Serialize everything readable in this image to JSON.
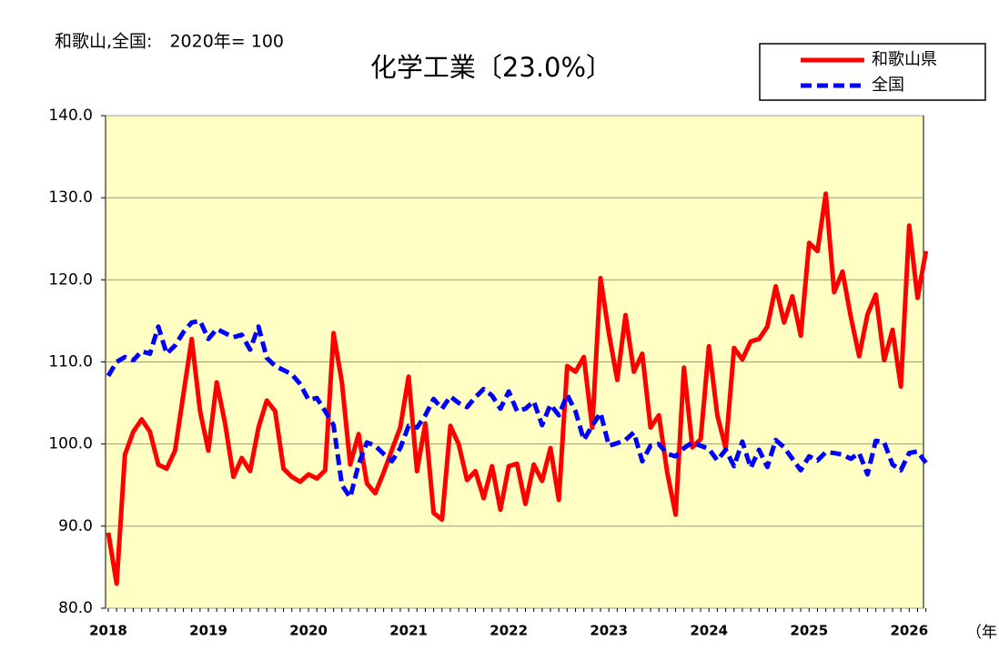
{
  "chart_data": {
    "type": "line",
    "title": "化学工業〔23.0%〕",
    "subtitle": "和歌山,全国:　2020年= 100",
    "xlabel": "（年",
    "categories": [
      "2018",
      null,
      null,
      null,
      null,
      null,
      null,
      null,
      null,
      null,
      null,
      null,
      "2019",
      null,
      null,
      null,
      null,
      null,
      null,
      null,
      null,
      null,
      null,
      null,
      "2020",
      null,
      null,
      null,
      null,
      null,
      null,
      null,
      null,
      null,
      null,
      null,
      "2021",
      null,
      null,
      null,
      null,
      null,
      null,
      null,
      null,
      null,
      null,
      null,
      "2022",
      null,
      null,
      null,
      null,
      null,
      null,
      null,
      null,
      null,
      null,
      null,
      "2023",
      null,
      null,
      null,
      null,
      null,
      null,
      null,
      null,
      null,
      null,
      null,
      "2024",
      null,
      null,
      null,
      null,
      null,
      null,
      null,
      null,
      null,
      null,
      null,
      "2025",
      null,
      null,
      null,
      null,
      null,
      null,
      null,
      null,
      null,
      null,
      null,
      "2026",
      null,
      null
    ],
    "series": [
      {
        "name": "和歌山県",
        "color": "#ff0000",
        "style": "solid",
        "values": [
          89.2,
          83.0,
          98.7,
          101.5,
          103.0,
          101.5,
          97.5,
          97.0,
          99.2,
          106.0,
          112.8,
          104.0,
          99.2,
          107.5,
          102.5,
          96.0,
          98.3,
          96.7,
          102.0,
          105.3,
          104.0,
          97.0,
          96.0,
          95.4,
          96.3,
          95.8,
          96.8,
          113.5,
          107.5,
          97.5,
          101.2,
          95.2,
          94.0,
          96.5,
          99.3,
          102.0,
          108.2,
          96.7,
          102.5,
          91.6,
          90.8,
          102.2,
          100.0,
          95.6,
          96.7,
          93.4,
          97.3,
          92.0,
          97.3,
          97.6,
          92.7,
          97.5,
          95.5,
          99.5,
          93.2,
          109.5,
          108.8,
          110.6,
          102.0,
          120.2,
          113.5,
          107.8,
          115.7,
          108.8,
          111.0,
          102.0,
          103.5,
          96.5,
          91.4,
          109.3,
          99.6,
          100.6,
          111.9,
          103.5,
          99.5,
          111.7,
          110.3,
          112.5,
          112.8,
          114.3,
          119.2,
          114.8,
          118.0,
          113.2,
          124.5,
          123.5,
          130.5,
          118.5,
          121.0,
          115.5,
          110.7,
          115.8,
          118.2,
          110.2,
          113.9,
          107.0,
          126.6,
          117.8,
          123.5
        ]
      },
      {
        "name": "全国",
        "color": "#0000ff",
        "style": "dashed",
        "values": [
          108.3,
          110.0,
          110.6,
          110.2,
          111.3,
          111.0,
          114.3,
          111.0,
          112.0,
          113.6,
          114.8,
          115.0,
          112.8,
          114.0,
          113.5,
          113.0,
          113.3,
          111.5,
          114.3,
          110.5,
          109.5,
          109.0,
          108.5,
          107.3,
          105.4,
          105.6,
          104.0,
          102.3,
          95.0,
          93.5,
          97.5,
          100.2,
          99.8,
          98.8,
          97.9,
          99.5,
          102.2,
          102.0,
          103.5,
          105.5,
          104.3,
          105.8,
          105.0,
          104.5,
          105.7,
          106.7,
          105.9,
          104.3,
          106.4,
          104.0,
          104.3,
          105.2,
          102.3,
          104.8,
          103.5,
          106.0,
          104.0,
          100.5,
          102.2,
          103.8,
          99.8,
          100.1,
          100.5,
          101.4,
          97.9,
          99.8,
          100.0,
          98.8,
          98.5,
          99.5,
          100.2,
          99.8,
          99.4,
          98.0,
          99.3,
          97.3,
          100.3,
          97.1,
          99.3,
          97.2,
          100.5,
          99.6,
          98.2,
          96.8,
          98.5,
          98.0,
          99.0,
          98.9,
          98.7,
          98.2,
          98.9,
          96.3,
          100.4,
          100.2,
          97.5,
          96.8,
          98.9,
          99.1,
          97.7
        ]
      }
    ],
    "ylim": [
      80,
      140
    ],
    "yticks": [
      {
        "value": 80,
        "label": "80.0"
      },
      {
        "value": 90,
        "label": "90.0"
      },
      {
        "value": 100,
        "label": "100.0"
      },
      {
        "value": 110,
        "label": "110.0"
      },
      {
        "value": 120,
        "label": "120.0"
      },
      {
        "value": 130,
        "label": "130.0"
      },
      {
        "value": 140,
        "label": "140.0"
      }
    ],
    "grid": true,
    "legend": "top-right",
    "background": "#ffffc4"
  }
}
